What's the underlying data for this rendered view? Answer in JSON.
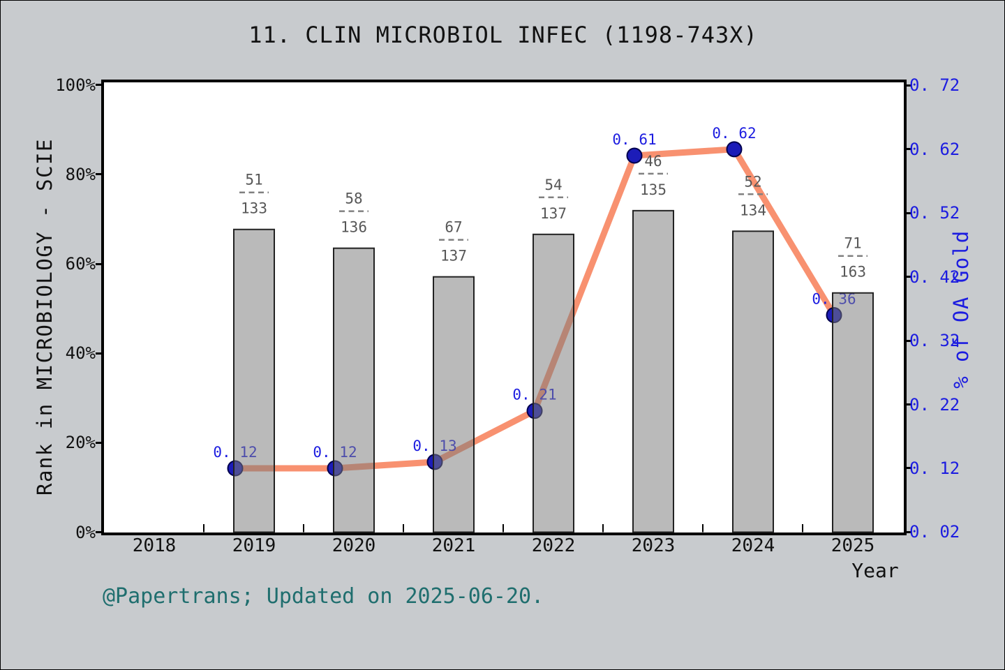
{
  "title": "11. CLIN MICROBIOL INFEC (1198-743X)",
  "caption": "@Papertrans; Updated on 2025-06-20.",
  "axes": {
    "left": {
      "label": "Rank in MICROBIOLOGY - SCIE",
      "ticks": [
        "0%",
        "20%",
        "40%",
        "60%",
        "80%",
        "100%"
      ],
      "range": [
        0,
        100
      ]
    },
    "right": {
      "label": "% of OA Gold",
      "ticks": [
        "0. 02",
        "0. 12",
        "0. 22",
        "0. 32",
        "0. 42",
        "0. 52",
        "0. 62",
        "0. 72"
      ],
      "range": [
        0.02,
        0.72
      ]
    },
    "x": {
      "label": "Year",
      "ticks": [
        "2018",
        "2019",
        "2020",
        "2021",
        "2022",
        "2023",
        "2024",
        "2025"
      ]
    }
  },
  "colors": {
    "background": "#c8cbce",
    "plot_background": "#ffffff",
    "frame": "#000000",
    "bar_fill": "#7a7a7a",
    "bar_fill_opacity": 0.52,
    "bar_edge": "#222222",
    "line": "#f89170",
    "point_fill": "#1c1cb8",
    "point_edge": "#00004d",
    "blue_text": "#1c1ce0",
    "right_tick_text": "#1c1ce0",
    "fraction_text": "#575757",
    "fraction_dash": "#808080",
    "caption_text": "#1f6e6e"
  },
  "chart_data": {
    "type": "bar",
    "title": "11. CLIN MICROBIOL INFEC (1198-743X)",
    "categories": [
      "2019",
      "2020",
      "2021",
      "2022",
      "2023",
      "2024",
      "2025"
    ],
    "x_axis_ticks": [
      "2018",
      "2019",
      "2020",
      "2021",
      "2022",
      "2023",
      "2024",
      "2025"
    ],
    "xlabel": "Year",
    "left_ylabel": "Rank in MICROBIOLOGY - SCIE",
    "right_ylabel": "% of OA Gold",
    "left_ylim": [
      0,
      100
    ],
    "right_ylim": [
      0.02,
      0.72
    ],
    "grid": false,
    "legend": false,
    "series": [
      {
        "name": "Rank in MICROBIOLOGY - SCIE",
        "chart_type": "bar",
        "axis": "left",
        "unit": "percent",
        "values": [
          67.7,
          63.5,
          57.1,
          66.6,
          71.9,
          67.3,
          53.5
        ],
        "bar_labels": [
          {
            "numerator": "51",
            "denominator": "133"
          },
          {
            "numerator": "58",
            "denominator": "136"
          },
          {
            "numerator": "67",
            "denominator": "137"
          },
          {
            "numerator": "54",
            "denominator": "137"
          },
          {
            "numerator": "46",
            "denominator": "135"
          },
          {
            "numerator": "52",
            "denominator": "134"
          },
          {
            "numerator": "71",
            "denominator": "163"
          }
        ]
      },
      {
        "name": "% of OA Gold",
        "chart_type": "line",
        "axis": "right",
        "values": [
          0.12,
          0.12,
          0.13,
          0.21,
          0.61,
          0.62,
          0.36
        ],
        "point_labels": [
          "0. 12",
          "0. 12",
          "0. 13",
          "0. 21",
          "0. 61",
          "0. 62",
          "0. 36"
        ]
      }
    ]
  }
}
